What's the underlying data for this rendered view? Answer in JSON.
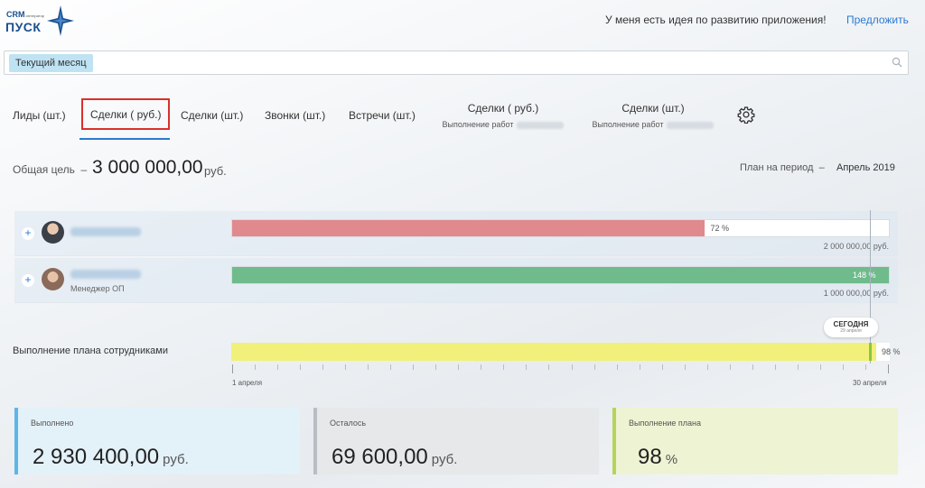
{
  "header": {
    "logo_crm": "CRM",
    "logo_small": "интегратор",
    "logo_pusk": "ПУСК",
    "idea_text": "У меня есть идея по развитию приложения!",
    "idea_link": "Предложить"
  },
  "filter": {
    "chip": "Текущий месяц",
    "search_icon": "search-icon"
  },
  "tabs": {
    "leads": "Лиды (шт.)",
    "deals_rub": "Сделки ( руб.)",
    "deals_pcs": "Сделки (шт.)",
    "calls": "Звонки (шт.)",
    "meetings": "Встречи (шт.)",
    "deals_rub_work": {
      "title": "Сделки ( руб.)",
      "sub": "Выполнение работ"
    },
    "deals_pcs_work": {
      "title": "Сделки (шт.)",
      "sub": "Выполнение работ"
    },
    "settings_icon": "gear-icon"
  },
  "goal": {
    "label": "Общая цель",
    "dash": "–",
    "value": "3 000 000,00",
    "unit": "руб.",
    "plan_label": "План на период",
    "plan_dash": "–",
    "plan_value": "Апрель 2019"
  },
  "employees": [
    {
      "role": "",
      "percent": 72,
      "percent_label": "72 %",
      "total": "2 000 000,00 руб.",
      "color": "#e08a8e"
    },
    {
      "role": "Менеджер ОП",
      "percent": 148,
      "percent_label": "148 %",
      "total": "1 000 000,00 руб.",
      "color": "#6fbb8c"
    }
  ],
  "today": {
    "label": "СЕГОДНЯ",
    "date": "29 апреля"
  },
  "team": {
    "label": "Выполнение плана сотрудниками",
    "percent": 98,
    "percent_label": "98 %",
    "start_date": "1 апреля",
    "end_date": "30 апреля"
  },
  "cards": {
    "done": {
      "label": "Выполнено",
      "value": "2 930 400,00",
      "unit": "руб."
    },
    "left": {
      "label": "Осталось",
      "value": "69 600,00",
      "unit": "руб."
    },
    "plan": {
      "label": "Выполнение плана",
      "value": "98",
      "unit": "%"
    }
  }
}
